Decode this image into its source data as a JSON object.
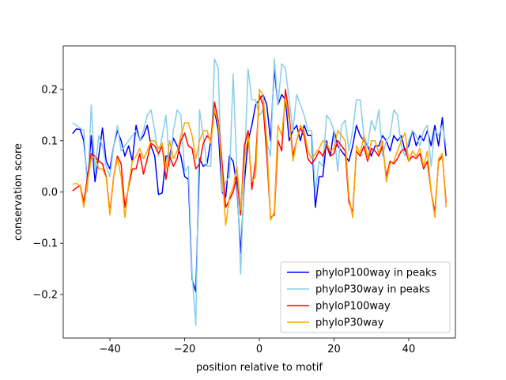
{
  "chart_data": {
    "type": "line",
    "title": "",
    "xlabel": "position relative to motif",
    "ylabel": "conservation score",
    "xlim": [
      -52.5,
      52.5
    ],
    "ylim": [
      -0.285,
      0.285
    ],
    "xticks": [
      -40,
      -20,
      0,
      20,
      40
    ],
    "xtick_labels": [
      "−40",
      "−20",
      "0",
      "20",
      "40"
    ],
    "yticks": [
      -0.2,
      -0.1,
      0.0,
      0.1,
      0.2
    ],
    "ytick_labels": [
      "−0.2",
      "−0.1",
      "0.0",
      "0.1",
      "0.2"
    ],
    "grid": false,
    "legend_position": "lower-right",
    "x": [
      -50,
      -49,
      -48,
      -47,
      -46,
      -45,
      -44,
      -43,
      -42,
      -41,
      -40,
      -39,
      -38,
      -37,
      -36,
      -35,
      -34,
      -33,
      -32,
      -31,
      -30,
      -29,
      -28,
      -27,
      -26,
      -25,
      -24,
      -23,
      -22,
      -21,
      -20,
      -19,
      -18,
      -17,
      -16,
      -15,
      -14,
      -13,
      -12,
      -11,
      -10,
      -9,
      -8,
      -7,
      -6,
      -5,
      -4,
      -3,
      -2,
      -1,
      0,
      1,
      2,
      3,
      4,
      5,
      6,
      7,
      8,
      9,
      10,
      11,
      12,
      13,
      14,
      15,
      16,
      17,
      18,
      19,
      20,
      21,
      22,
      23,
      24,
      25,
      26,
      27,
      28,
      29,
      30,
      31,
      32,
      33,
      34,
      35,
      36,
      37,
      38,
      39,
      40,
      41,
      42,
      43,
      44,
      45,
      46,
      47,
      48,
      49,
      50
    ],
    "series": [
      {
        "name": "phyloP100way in peaks",
        "color": "#0000ff",
        "values": [
          0.114,
          0.123,
          0.122,
          0.1,
          0.02,
          0.11,
          0.02,
          0.07,
          0.125,
          0.06,
          0.045,
          0.09,
          0.12,
          0.1,
          0.07,
          0.09,
          0.06,
          0.13,
          0.1,
          0.11,
          0.13,
          0.09,
          0.07,
          -0.005,
          -0.002,
          0.07,
          0.07,
          0.105,
          0.09,
          0.07,
          0.03,
          0.025,
          -0.17,
          -0.195,
          0.065,
          0.05,
          0.055,
          0.1,
          0.16,
          0.12,
          0.0,
          -0.01,
          0.07,
          0.06,
          0.01,
          -0.12,
          0.02,
          0.1,
          0.13,
          0.17,
          0.18,
          0.19,
          0.17,
          0.1,
          0.24,
          0.17,
          0.19,
          0.18,
          0.1,
          0.12,
          0.13,
          0.1,
          0.13,
          0.11,
          0.11,
          -0.03,
          0.03,
          0.03,
          0.1,
          0.07,
          0.12,
          0.09,
          0.08,
          0.07,
          0.06,
          0.09,
          0.13,
          0.11,
          0.1,
          0.09,
          0.07,
          0.09,
          0.09,
          0.11,
          0.1,
          0.08,
          0.11,
          0.1,
          0.11,
          0.08,
          0.09,
          0.12,
          0.09,
          0.11,
          0.1,
          0.12,
          0.09,
          0.13,
          0.09,
          0.145,
          0.07
        ]
      },
      {
        "name": "phyloP30way in peaks",
        "color": "#87ceeb",
        "values": [
          0.135,
          0.13,
          0.125,
          0.12,
          0.0,
          0.17,
          0.04,
          0.11,
          0.09,
          0.05,
          0.03,
          0.09,
          0.13,
          0.08,
          0.09,
          0.1,
          0.11,
          0.12,
          0.1,
          0.12,
          0.15,
          0.16,
          0.12,
          0.07,
          0.11,
          0.15,
          0.05,
          0.12,
          0.16,
          0.15,
          0.04,
          0.05,
          -0.16,
          -0.26,
          0.16,
          0.11,
          0.05,
          0.05,
          0.26,
          0.24,
          0.0,
          0.02,
          0.03,
          0.23,
          0.04,
          -0.16,
          0.05,
          0.24,
          0.18,
          0.18,
          0.15,
          0.16,
          0.1,
          0.07,
          0.26,
          0.17,
          0.25,
          0.24,
          0.18,
          0.12,
          0.19,
          0.17,
          0.15,
          0.12,
          0.12,
          0.0,
          0.06,
          0.05,
          0.15,
          0.14,
          0.12,
          0.04,
          0.13,
          0.14,
          0.08,
          0.12,
          0.18,
          0.18,
          0.11,
          0.09,
          0.14,
          0.12,
          0.16,
          0.07,
          0.1,
          0.11,
          0.16,
          0.15,
          0.09,
          0.07,
          0.1,
          0.12,
          0.11,
          0.09,
          0.12,
          0.13,
          0.05,
          0.12,
          0.11,
          0.13,
          0.09
        ]
      },
      {
        "name": "phyloP100way",
        "color": "#ff0000",
        "values": [
          0.002,
          0.008,
          0.013,
          -0.02,
          0.03,
          0.075,
          0.07,
          0.06,
          0.055,
          0.03,
          -0.04,
          0.03,
          0.07,
          0.055,
          -0.03,
          0.01,
          0.045,
          0.045,
          0.075,
          0.035,
          0.065,
          0.095,
          0.09,
          0.075,
          0.09,
          0.025,
          0.07,
          0.05,
          0.065,
          0.1,
          0.115,
          0.09,
          0.085,
          0.045,
          0.055,
          0.095,
          0.11,
          0.1,
          0.175,
          0.14,
          0.06,
          -0.03,
          -0.015,
          0.0,
          0.03,
          -0.045,
          0.09,
          0.12,
          0.005,
          0.06,
          0.19,
          0.17,
          0.07,
          -0.05,
          -0.045,
          0.1,
          0.08,
          0.2,
          0.15,
          0.07,
          0.1,
          0.125,
          0.11,
          0.065,
          0.055,
          0.065,
          0.08,
          0.07,
          0.09,
          0.07,
          0.075,
          0.1,
          0.09,
          0.08,
          -0.02,
          -0.04,
          0.08,
          0.07,
          0.09,
          0.06,
          0.085,
          0.08,
          0.07,
          0.09,
          0.03,
          0.06,
          0.055,
          0.065,
          0.08,
          0.085,
          0.06,
          0.07,
          0.065,
          0.075,
          0.045,
          0.06,
          0.0,
          -0.04,
          0.06,
          0.07,
          -0.02
        ]
      },
      {
        "name": "phyloP30way",
        "color": "#ffa500",
        "values": [
          0.015,
          0.017,
          0.012,
          -0.03,
          0.02,
          0.065,
          0.07,
          0.045,
          0.045,
          0.028,
          -0.045,
          0.03,
          0.065,
          0.03,
          -0.05,
          0.015,
          0.06,
          0.07,
          0.085,
          0.065,
          0.08,
          0.1,
          0.1,
          0.085,
          0.095,
          0.045,
          0.1,
          0.065,
          0.08,
          0.11,
          0.135,
          0.135,
          0.11,
          0.065,
          0.1,
          0.12,
          0.12,
          0.095,
          0.16,
          0.135,
          0.04,
          -0.065,
          -0.01,
          0.01,
          0.05,
          -0.035,
          0.06,
          0.11,
          0.02,
          0.03,
          0.2,
          0.19,
          0.1,
          -0.055,
          -0.04,
          0.13,
          0.11,
          0.185,
          0.14,
          0.06,
          0.1,
          0.13,
          0.12,
          0.08,
          0.065,
          0.075,
          0.085,
          0.1,
          0.095,
          0.08,
          0.085,
          0.12,
          0.11,
          0.1,
          -0.01,
          -0.05,
          0.09,
          0.075,
          0.11,
          0.065,
          0.1,
          0.1,
          0.075,
          0.1,
          0.02,
          0.055,
          0.06,
          0.08,
          0.1,
          0.115,
          0.06,
          0.08,
          0.07,
          0.085,
          0.05,
          0.08,
          0.0,
          -0.05,
          0.065,
          0.075,
          -0.03
        ]
      }
    ]
  }
}
